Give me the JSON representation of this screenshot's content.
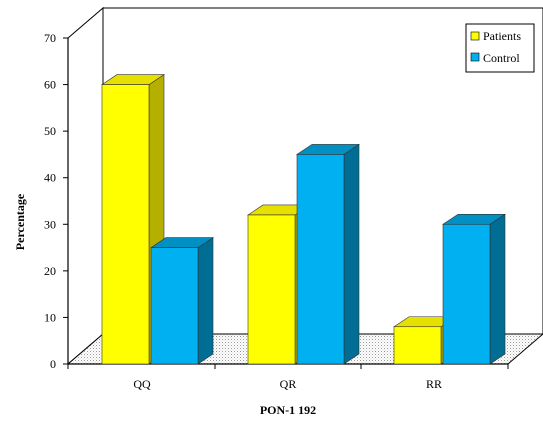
{
  "chart_data": {
    "type": "bar",
    "style": "3d-clustered-column",
    "title": "",
    "xlabel": "PON-1 192",
    "ylabel": "Percentage",
    "categories": [
      "QQ",
      "QR",
      "RR"
    ],
    "series": [
      {
        "name": "Patients",
        "values": [
          60,
          32,
          8
        ],
        "color": "#ffff00",
        "side_color": "#b5b000",
        "top_color": "#e6e000"
      },
      {
        "name": "Control",
        "values": [
          25,
          45,
          30
        ],
        "color": "#00b0f0",
        "side_color": "#006e94",
        "top_color": "#0090c4"
      }
    ],
    "ylim": [
      0,
      70
    ],
    "yticks": [
      "0",
      "10",
      "20",
      "30",
      "40",
      "50",
      "60",
      "70"
    ],
    "grid": false,
    "legend_position": "top-right",
    "floor_pattern": "dotted"
  }
}
